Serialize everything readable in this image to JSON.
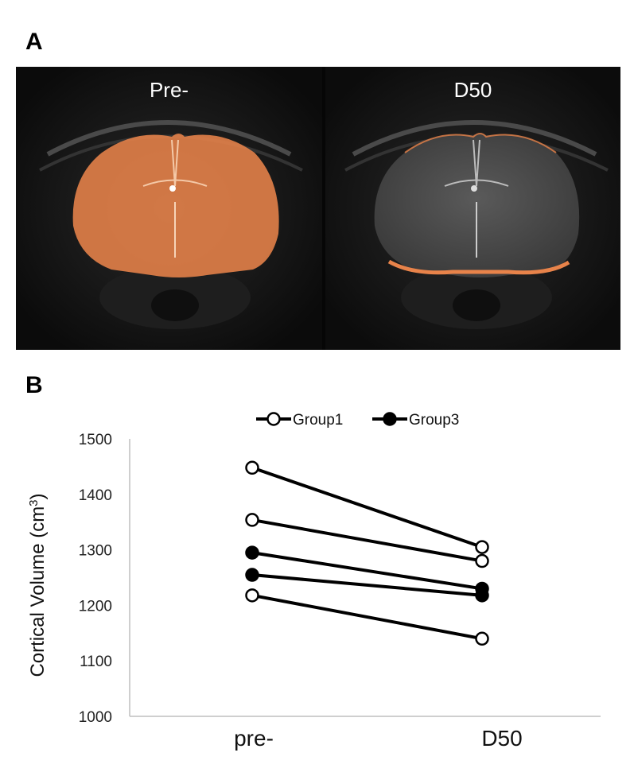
{
  "panels": {
    "a_label": "A",
    "b_label": "B"
  },
  "images": {
    "pre_label": "Pre-",
    "post_label": "D50",
    "overlay_color": "#e8834a"
  },
  "chart_data": {
    "type": "line",
    "categories": [
      "pre-",
      "D50"
    ],
    "ylabel": "Cortical Volume (cm",
    "ylabel_superscript": "3",
    "ylabel_suffix": ")",
    "ylim": [
      1000,
      1500
    ],
    "yticks": [
      "1000",
      "1100",
      "1200",
      "1300",
      "1400",
      "1500"
    ],
    "legend": {
      "position": "top-center",
      "entries": [
        {
          "name": "Group1",
          "marker": "open"
        },
        {
          "name": "Group3",
          "marker": "filled"
        }
      ]
    },
    "series": [
      {
        "group": "Group1",
        "values": [
          1448,
          1305
        ]
      },
      {
        "group": "Group1",
        "values": [
          1354,
          1280
        ]
      },
      {
        "group": "Group3",
        "values": [
          1295,
          1230
        ]
      },
      {
        "group": "Group3",
        "values": [
          1255,
          1218
        ]
      },
      {
        "group": "Group1",
        "values": [
          1218,
          1140
        ]
      }
    ],
    "grid": false
  }
}
